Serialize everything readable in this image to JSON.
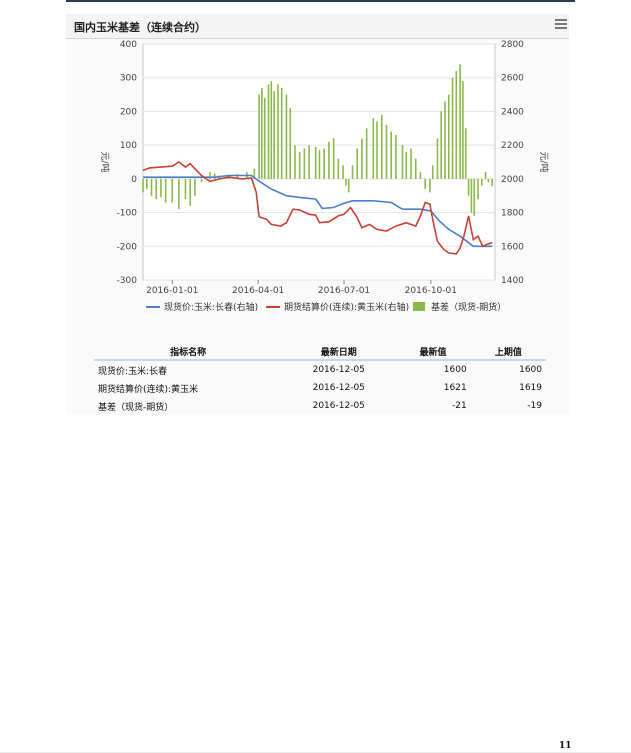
{
  "panel": {
    "title": "国内玉米基差（连续合约）"
  },
  "chart_data": {
    "type": "bar+line",
    "x_range": [
      "2015-12-01",
      "2016-12-08"
    ],
    "x_ticks": [
      "2016-01-01",
      "2016-04-01",
      "2016-07-01",
      "2016-10-01"
    ],
    "left_axis": {
      "label": "元/吨",
      "range": [
        -300,
        400
      ],
      "ticks": [
        400,
        300,
        200,
        100,
        0,
        -100,
        -200,
        -300
      ]
    },
    "right_axis": {
      "label": "元/吨",
      "range": [
        1400,
        2800
      ],
      "ticks": [
        2800,
        2600,
        2400,
        2200,
        2000,
        1800,
        1600,
        1400
      ]
    },
    "legend_position": "bottom",
    "series": [
      {
        "name": "现货价:玉米:长春(右轴)",
        "type": "line",
        "axis": "right",
        "color": "#4a7fc8",
        "points": [
          [
            "2015-12-01",
            2010
          ],
          [
            "2016-01-01",
            2010
          ],
          [
            "2016-02-15",
            2010
          ],
          [
            "2016-03-01",
            2020
          ],
          [
            "2016-03-25",
            2020
          ],
          [
            "2016-04-01",
            1990
          ],
          [
            "2016-04-15",
            1940
          ],
          [
            "2016-05-01",
            1900
          ],
          [
            "2016-05-15",
            1890
          ],
          [
            "2016-06-01",
            1880
          ],
          [
            "2016-06-08",
            1825
          ],
          [
            "2016-06-20",
            1830
          ],
          [
            "2016-07-01",
            1855
          ],
          [
            "2016-07-10",
            1870
          ],
          [
            "2016-08-01",
            1870
          ],
          [
            "2016-08-20",
            1860
          ],
          [
            "2016-09-01",
            1820
          ],
          [
            "2016-09-20",
            1820
          ],
          [
            "2016-10-01",
            1810
          ],
          [
            "2016-10-10",
            1750
          ],
          [
            "2016-10-20",
            1700
          ],
          [
            "2016-11-01",
            1660
          ],
          [
            "2016-11-15",
            1600
          ],
          [
            "2016-12-05",
            1600
          ]
        ]
      },
      {
        "name": "期货结算价(连续):黄玉米(右轴)",
        "type": "line",
        "axis": "right",
        "color": "#c84034",
        "points": [
          [
            "2015-12-01",
            2050
          ],
          [
            "2015-12-08",
            2065
          ],
          [
            "2015-12-20",
            2070
          ],
          [
            "2016-01-01",
            2075
          ],
          [
            "2016-01-08",
            2100
          ],
          [
            "2016-01-15",
            2070
          ],
          [
            "2016-01-20",
            2090
          ],
          [
            "2016-01-25",
            2060
          ],
          [
            "2016-02-01",
            2020
          ],
          [
            "2016-02-10",
            1985
          ],
          [
            "2016-02-20",
            2000
          ],
          [
            "2016-03-01",
            2010
          ],
          [
            "2016-03-15",
            2000
          ],
          [
            "2016-03-25",
            2005
          ],
          [
            "2016-03-30",
            1920
          ],
          [
            "2016-04-02",
            1775
          ],
          [
            "2016-04-10",
            1760
          ],
          [
            "2016-04-15",
            1730
          ],
          [
            "2016-04-25",
            1720
          ],
          [
            "2016-05-01",
            1740
          ],
          [
            "2016-05-08",
            1820
          ],
          [
            "2016-05-15",
            1815
          ],
          [
            "2016-05-25",
            1790
          ],
          [
            "2016-06-01",
            1785
          ],
          [
            "2016-06-05",
            1740
          ],
          [
            "2016-06-15",
            1745
          ],
          [
            "2016-06-25",
            1780
          ],
          [
            "2016-07-01",
            1790
          ],
          [
            "2016-07-08",
            1830
          ],
          [
            "2016-07-15",
            1770
          ],
          [
            "2016-07-20",
            1710
          ],
          [
            "2016-07-28",
            1730
          ],
          [
            "2016-08-05",
            1700
          ],
          [
            "2016-08-15",
            1690
          ],
          [
            "2016-08-25",
            1720
          ],
          [
            "2016-09-05",
            1740
          ],
          [
            "2016-09-15",
            1720
          ],
          [
            "2016-09-20",
            1780
          ],
          [
            "2016-09-25",
            1860
          ],
          [
            "2016-09-30",
            1850
          ],
          [
            "2016-10-03",
            1760
          ],
          [
            "2016-10-08",
            1630
          ],
          [
            "2016-10-15",
            1580
          ],
          [
            "2016-10-20",
            1560
          ],
          [
            "2016-10-28",
            1555
          ],
          [
            "2016-11-01",
            1590
          ],
          [
            "2016-11-05",
            1660
          ],
          [
            "2016-11-10",
            1780
          ],
          [
            "2016-11-15",
            1640
          ],
          [
            "2016-11-20",
            1660
          ],
          [
            "2016-11-25",
            1600
          ],
          [
            "2016-12-01",
            1615
          ],
          [
            "2016-12-05",
            1621
          ]
        ]
      },
      {
        "name": "基差（现货-期货）",
        "type": "bar",
        "axis": "left",
        "color": "#8ab84a",
        "points": [
          [
            "2015-12-01",
            -40
          ],
          [
            "2015-12-05",
            -30
          ],
          [
            "2015-12-10",
            -50
          ],
          [
            "2015-12-15",
            -60
          ],
          [
            "2015-12-20",
            -55
          ],
          [
            "2015-12-25",
            -70
          ],
          [
            "2016-01-01",
            -70
          ],
          [
            "2016-01-08",
            -90
          ],
          [
            "2016-01-15",
            -60
          ],
          [
            "2016-01-20",
            -80
          ],
          [
            "2016-01-25",
            -50
          ],
          [
            "2016-02-01",
            -10
          ],
          [
            "2016-02-10",
            20
          ],
          [
            "2016-02-15",
            15
          ],
          [
            "2016-02-20",
            10
          ],
          [
            "2016-03-01",
            10
          ],
          [
            "2016-03-10",
            15
          ],
          [
            "2016-03-20",
            20
          ],
          [
            "2016-03-28",
            30
          ],
          [
            "2016-04-02",
            250
          ],
          [
            "2016-04-05",
            270
          ],
          [
            "2016-04-08",
            240
          ],
          [
            "2016-04-12",
            280
          ],
          [
            "2016-04-15",
            290
          ],
          [
            "2016-04-18",
            260
          ],
          [
            "2016-04-22",
            280
          ],
          [
            "2016-04-26",
            270
          ],
          [
            "2016-05-01",
            250
          ],
          [
            "2016-05-05",
            210
          ],
          [
            "2016-05-10",
            100
          ],
          [
            "2016-05-15",
            80
          ],
          [
            "2016-05-20",
            90
          ],
          [
            "2016-05-25",
            100
          ],
          [
            "2016-06-01",
            95
          ],
          [
            "2016-06-05",
            85
          ],
          [
            "2016-06-10",
            90
          ],
          [
            "2016-06-15",
            110
          ],
          [
            "2016-06-20",
            120
          ],
          [
            "2016-06-25",
            60
          ],
          [
            "2016-06-30",
            40
          ],
          [
            "2016-07-03",
            -20
          ],
          [
            "2016-07-06",
            -40
          ],
          [
            "2016-07-10",
            40
          ],
          [
            "2016-07-15",
            90
          ],
          [
            "2016-07-20",
            120
          ],
          [
            "2016-07-25",
            150
          ],
          [
            "2016-08-01",
            180
          ],
          [
            "2016-08-05",
            170
          ],
          [
            "2016-08-10",
            190
          ],
          [
            "2016-08-15",
            160
          ],
          [
            "2016-08-20",
            140
          ],
          [
            "2016-08-25",
            130
          ],
          [
            "2016-09-01",
            100
          ],
          [
            "2016-09-05",
            80
          ],
          [
            "2016-09-10",
            90
          ],
          [
            "2016-09-15",
            60
          ],
          [
            "2016-09-20",
            20
          ],
          [
            "2016-09-25",
            -30
          ],
          [
            "2016-09-30",
            -40
          ],
          [
            "2016-10-03",
            40
          ],
          [
            "2016-10-08",
            120
          ],
          [
            "2016-10-12",
            200
          ],
          [
            "2016-10-16",
            230
          ],
          [
            "2016-10-20",
            250
          ],
          [
            "2016-10-24",
            300
          ],
          [
            "2016-10-28",
            320
          ],
          [
            "2016-11-01",
            340
          ],
          [
            "2016-11-04",
            290
          ],
          [
            "2016-11-07",
            150
          ],
          [
            "2016-11-10",
            -50
          ],
          [
            "2016-11-13",
            -100
          ],
          [
            "2016-11-16",
            -110
          ],
          [
            "2016-11-20",
            -60
          ],
          [
            "2016-11-24",
            -20
          ],
          [
            "2016-11-28",
            20
          ],
          [
            "2016-12-01",
            -10
          ],
          [
            "2016-12-05",
            -21
          ]
        ]
      }
    ]
  },
  "table": {
    "headers": [
      "指标名称",
      "最新日期",
      "最新值",
      "上期值"
    ],
    "rows": [
      [
        "现货价:玉米:长春",
        "2016-12-05",
        "1600",
        "1600"
      ],
      [
        "期货结算价(连续):黄玉米",
        "2016-12-05",
        "1621",
        "1619"
      ],
      [
        "基差（现货-期货）",
        "2016-12-05",
        "-21",
        "-19"
      ]
    ]
  },
  "page_number": "11"
}
